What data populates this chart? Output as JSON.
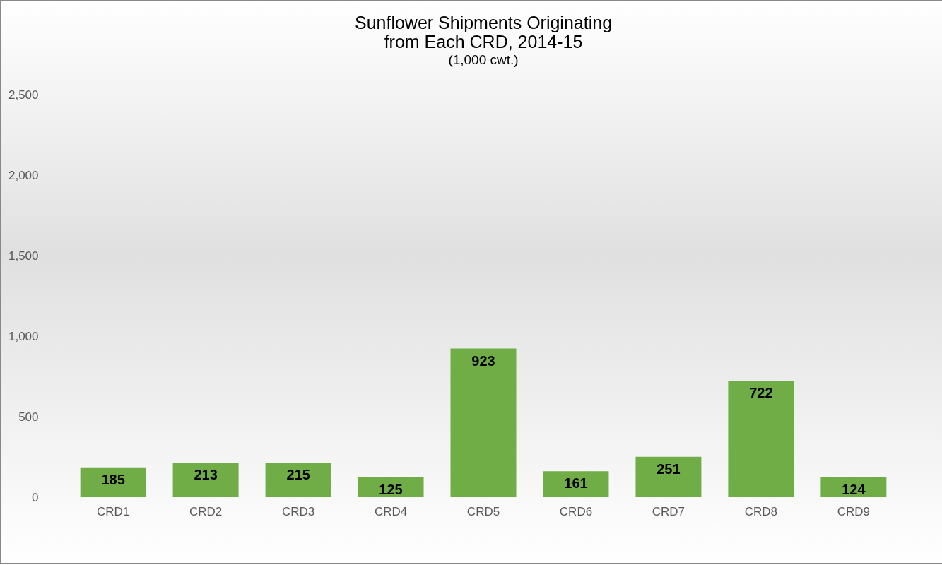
{
  "chart_data": {
    "type": "bar",
    "title": "Sunflower Shipments Originating\nfrom Each CRD, 2014-15",
    "subtitle": "(1,000 cwt.)",
    "categories": [
      "CRD1",
      "CRD2",
      "CRD3",
      "CRD4",
      "CRD5",
      "CRD6",
      "CRD7",
      "CRD8",
      "CRD9"
    ],
    "values": [
      185,
      213,
      215,
      125,
      923,
      161,
      251,
      722,
      124
    ],
    "color": "#70ad47",
    "ylim": [
      0,
      2500
    ],
    "yticks": [
      0,
      500,
      {
        "value": 1000,
        "label": "1,000"
      },
      {
        "value": 1500,
        "label": "1,500"
      },
      {
        "value": 2000,
        "label": "2,000"
      },
      {
        "value": 2500,
        "label": "2,500"
      }
    ],
    "grid": false,
    "data_labels": true
  }
}
